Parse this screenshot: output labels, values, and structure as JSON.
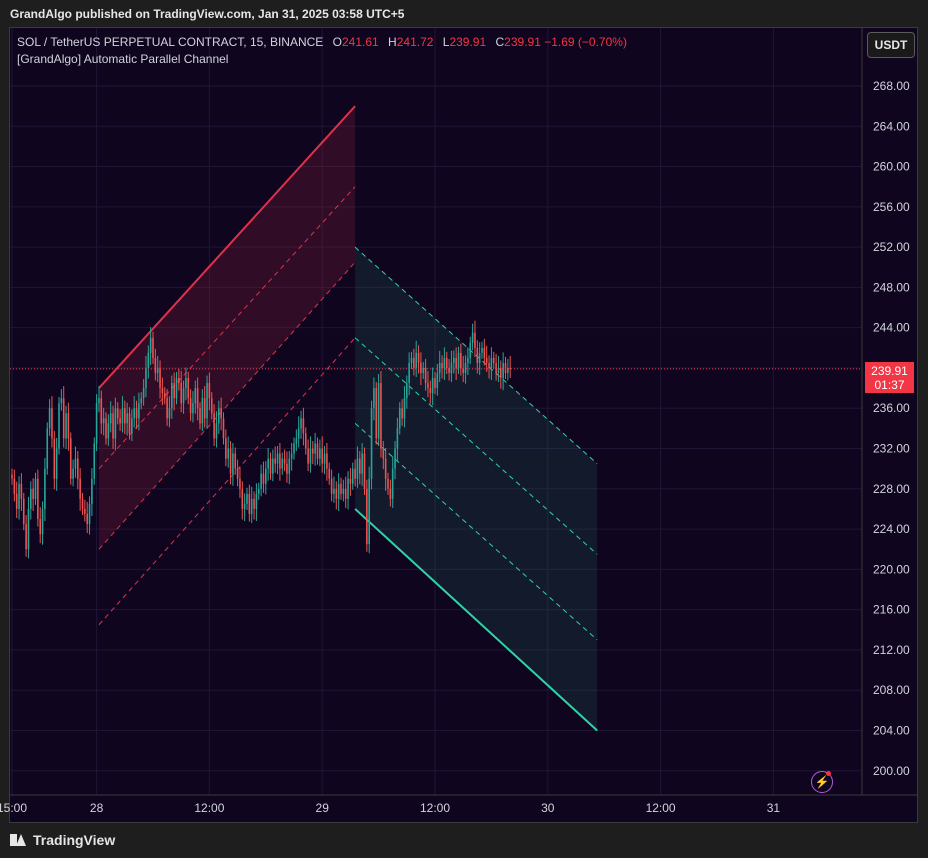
{
  "header": {
    "publisher": "GrandAlgo published on TradingView.com, Jan 31, 2025 03:58 UTC+5"
  },
  "legend": {
    "symbol": "SOL / TetherUS PERPETUAL CONTRACT, 15, BINANCE",
    "o_label": "O",
    "o_value": "241.61",
    "h_label": "H",
    "h_value": "241.72",
    "l_label": "L",
    "l_value": "239.91",
    "c_label": "C",
    "c_value": "239.91",
    "change": "−1.69 (−0.70%)",
    "indicator": "[GrandAlgo] Automatic Parallel Channel"
  },
  "currency_button": "USDT",
  "last_price": {
    "price": "239.91",
    "countdown": "01:37"
  },
  "footer": {
    "brand": "TradingView"
  },
  "icons": {
    "logo": "tradingview-logo-icon",
    "replay": "lightning-icon"
  },
  "colors": {
    "background": "#10051f",
    "grid": "#1f1535",
    "up": "#26a69a",
    "down": "#ef5350",
    "bear_channel": "#e0314a",
    "bull_channel": "#2fd3a6",
    "last_price": "#f23645"
  },
  "chart_data": {
    "type": "candlestick",
    "title": "SOL / TetherUS PERPETUAL CONTRACT, 15, BINANCE",
    "xlabel": "",
    "ylabel": "",
    "ylim": [
      198,
      272
    ],
    "grid": true,
    "y_ticks": [
      "268.00",
      "264.00",
      "260.00",
      "256.00",
      "252.00",
      "248.00",
      "244.00",
      "240.00",
      "236.00",
      "232.00",
      "228.00",
      "224.00",
      "220.00",
      "216.00",
      "212.00",
      "208.00",
      "204.00",
      "200.00"
    ],
    "x_ticks": [
      {
        "label": "15:00",
        "bar": 0
      },
      {
        "label": "28",
        "bar": 36
      },
      {
        "label": "12:00",
        "bar": 84
      },
      {
        "label": "29",
        "bar": 132
      },
      {
        "label": "12:00",
        "bar": 180
      },
      {
        "label": "30",
        "bar": 228
      },
      {
        "label": "12:00",
        "bar": 276
      },
      {
        "label": "31",
        "bar": 324
      }
    ],
    "series": [
      {
        "name": "price",
        "values": [
          229.0,
          227.5,
          226.0,
          228.5,
          227.0,
          224.5,
          222.0,
          226.0,
          228.0,
          227.0,
          229.0,
          225.0,
          223.5,
          226.0,
          230.0,
          234.0,
          236.0,
          233.0,
          229.0,
          232.0,
          236.5,
          237.0,
          233.0,
          235.5,
          233.0,
          229.0,
          230.0,
          231.0,
          229.0,
          227.0,
          226.0,
          225.5,
          224.5,
          226.5,
          229.0,
          232.5,
          236.5,
          237.0,
          234.5,
          235.0,
          233.0,
          234.5,
          235.5,
          233.0,
          236.0,
          235.0,
          234.5,
          236.0,
          234.5,
          235.5,
          233.5,
          235.0,
          236.0,
          235.0,
          236.5,
          237.0,
          238.0,
          240.0,
          241.5,
          243.0,
          241.0,
          239.5,
          240.0,
          238.0,
          237.5,
          237.0,
          235.0,
          236.0,
          238.5,
          237.0,
          239.0,
          238.5,
          236.5,
          238.0,
          239.0,
          237.0,
          235.5,
          236.5,
          238.0,
          236.0,
          234.5,
          237.0,
          235.0,
          238.5,
          237.0,
          235.5,
          233.0,
          234.5,
          236.0,
          235.0,
          233.0,
          231.0,
          232.0,
          229.5,
          231.5,
          230.0,
          229.0,
          228.0,
          226.0,
          226.5,
          227.5,
          225.5,
          227.0,
          226.0,
          227.5,
          228.0,
          229.5,
          228.5,
          230.0,
          231.0,
          229.5,
          231.0,
          230.5,
          231.5,
          230.0,
          231.0,
          230.5,
          229.5,
          231.0,
          231.5,
          232.5,
          233.0,
          234.0,
          235.0,
          233.5,
          232.0,
          230.5,
          232.0,
          231.5,
          232.5,
          231.0,
          232.0,
          230.5,
          231.5,
          230.0,
          229.0,
          227.5,
          228.0,
          227.0,
          228.5,
          227.5,
          228.0,
          227.0,
          229.0,
          228.5,
          230.0,
          229.0,
          231.0,
          229.5,
          231.5,
          228.0,
          222.5,
          229.0,
          236.0,
          238.0,
          233.0,
          238.5,
          232.0,
          231.0,
          229.0,
          228.0,
          227.0,
          230.0,
          232.0,
          234.0,
          236.0,
          235.0,
          237.0,
          238.5,
          240.5,
          241.0,
          240.0,
          241.5,
          240.5,
          239.5,
          240.0,
          238.5,
          238.0,
          237.5,
          239.0,
          238.0,
          239.5,
          240.5,
          240.0,
          241.0,
          240.0,
          239.5,
          240.5,
          241.0,
          240.0,
          241.5,
          240.0,
          239.5,
          240.5,
          241.0,
          242.5,
          243.5,
          242.0,
          240.5,
          241.5,
          242.0,
          241.0,
          240.5,
          240.0,
          241.0,
          240.5,
          239.5,
          240.0,
          239.0,
          240.5,
          239.5,
          240.0,
          239.91
        ]
      },
      {
        "name": "Bear Channel upper",
        "x": [
          37,
          146
        ],
        "values": [
          238.0,
          266.0
        ]
      },
      {
        "name": "Bear Channel mid",
        "x": [
          37,
          146
        ],
        "values": [
          230.0,
          258.0
        ]
      },
      {
        "name": "Bear Channel lower",
        "x": [
          37,
          146
        ],
        "values": [
          222.0,
          250.5
        ]
      },
      {
        "name": "Bull Channel upper",
        "x": [
          146,
          249
        ],
        "values": [
          252.0,
          230.5
        ]
      },
      {
        "name": "Bull Channel mid",
        "x": [
          146,
          249
        ],
        "values": [
          243.0,
          221.5
        ]
      },
      {
        "name": "Bull Channel lower",
        "x": [
          146,
          249
        ],
        "values": [
          226.0,
          204.0
        ]
      }
    ]
  }
}
